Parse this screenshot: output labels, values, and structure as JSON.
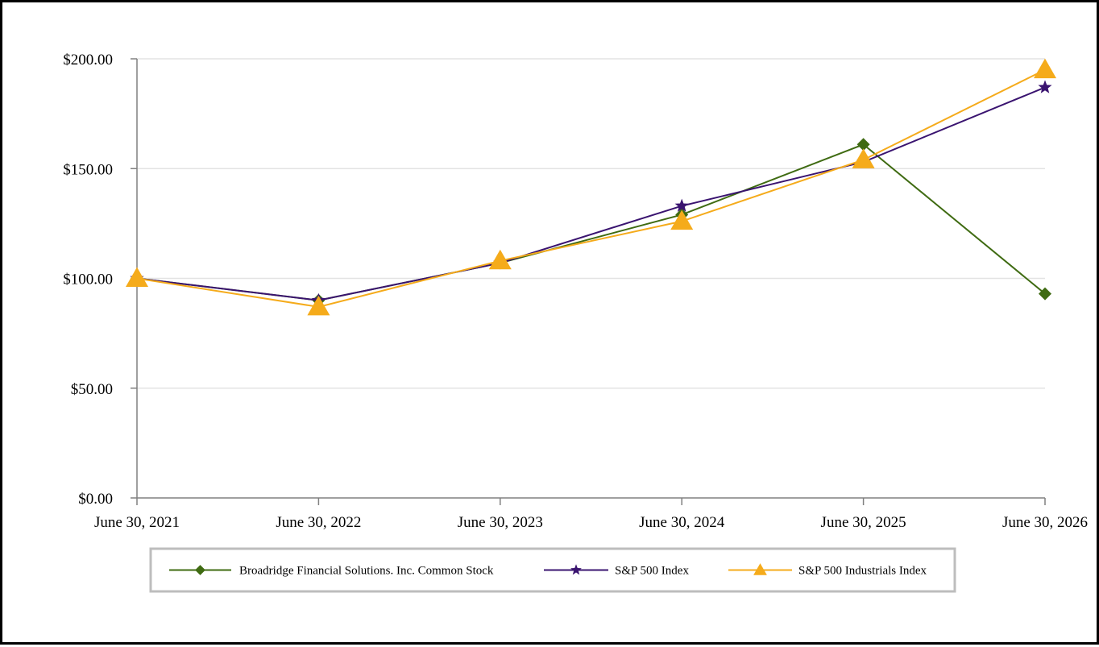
{
  "chart_data": {
    "type": "line",
    "title": "",
    "xlabel": "",
    "ylabel": "",
    "categories": [
      "June 30, 2021",
      "June 30, 2022",
      "June 30, 2023",
      "June 30, 2024",
      "June 30, 2025",
      "June 30, 2026"
    ],
    "ylim": [
      0,
      200
    ],
    "yticks": [
      0,
      50,
      100,
      150,
      200
    ],
    "ytick_labels": [
      "$0.00",
      "$50.00",
      "$100.00",
      "$150.00",
      "$200.00"
    ],
    "grid": "horizontal",
    "legend_position": "bottom",
    "series": [
      {
        "name": "Broadridge Financial Solutions. Inc. Common Stock",
        "marker": "diamond",
        "color": "#3f6b12",
        "values": [
          100,
          90,
          107,
          129,
          161,
          93
        ]
      },
      {
        "name": "S&P 500 Index",
        "marker": "star",
        "color": "#3a1470",
        "values": [
          100,
          90,
          107,
          133,
          153,
          187
        ]
      },
      {
        "name": "S&P 500 Industrials Index",
        "marker": "triangle",
        "color": "#f5ab1b",
        "values": [
          100,
          87,
          108,
          126,
          154,
          195
        ]
      }
    ]
  }
}
